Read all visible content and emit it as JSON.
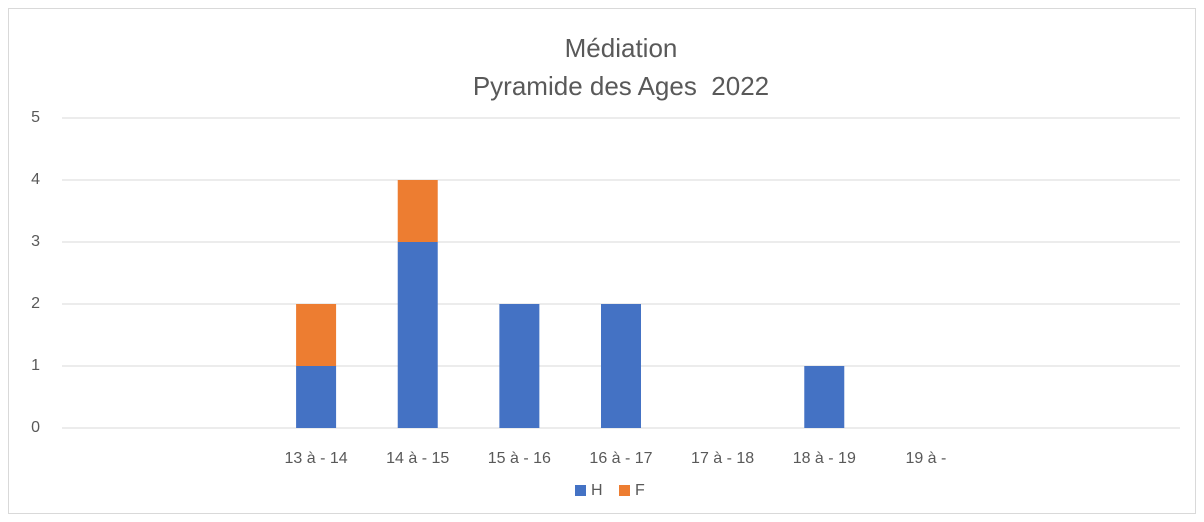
{
  "chart_data": {
    "type": "bar",
    "stacked": true,
    "title": "Médiation",
    "subtitle": "Pyramide des Ages  2022",
    "categories": [
      null,
      null,
      "13 à - 14",
      "14 à - 15",
      "15 à - 16",
      "16 à - 17",
      "17 à - 18",
      "18 à - 19",
      "19 à -",
      null,
      null
    ],
    "series": [
      {
        "name": "H",
        "color": "#4472c4",
        "values": [
          null,
          null,
          1,
          3,
          2,
          2,
          0,
          1,
          0,
          null,
          null
        ]
      },
      {
        "name": "F",
        "color": "#ed7d31",
        "values": [
          null,
          null,
          1,
          1,
          0,
          0,
          0,
          0,
          0,
          null,
          null
        ]
      }
    ],
    "ylim": [
      0,
      5
    ],
    "yticks": [
      0,
      1,
      2,
      3,
      4,
      5
    ],
    "grid": true,
    "legend": "bottom"
  }
}
